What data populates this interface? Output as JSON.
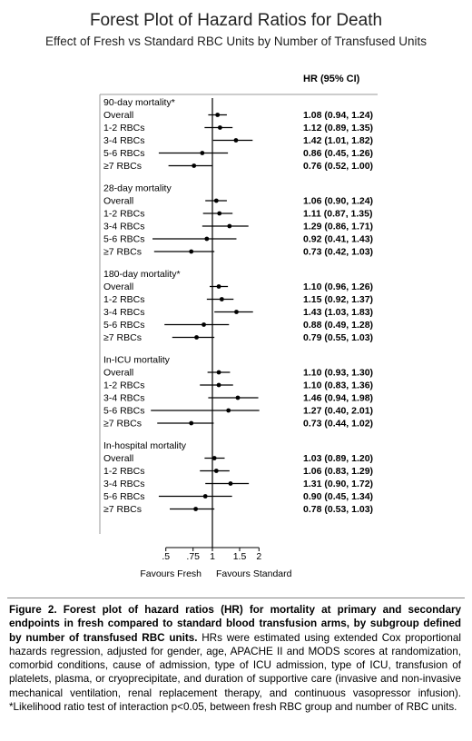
{
  "title": "Forest Plot of Hazard Ratios for Death",
  "subtitle": "Effect of Fresh vs Standard RBC Units by Number of Transfused Units",
  "chart_data": {
    "type": "forest",
    "column_header": "HR (95% CI)",
    "x_scale": "log",
    "x_ticks": [
      {
        "value": 0.5,
        "label": ".5"
      },
      {
        "value": 0.75,
        "label": ".75"
      },
      {
        "value": 1,
        "label": "1"
      },
      {
        "value": 1.5,
        "label": "1.5"
      },
      {
        "value": 2,
        "label": "2"
      }
    ],
    "reference_line": 1,
    "left_label": "Favours Fresh",
    "right_label": "Favours Standard",
    "groups": [
      {
        "title": "90-day mortality*",
        "rows": [
          {
            "label": "Overall",
            "hr": 1.08,
            "lo": 0.94,
            "hi": 1.24,
            "text": "1.08 (0.94, 1.24)"
          },
          {
            "label": "1-2 RBCs",
            "hr": 1.12,
            "lo": 0.89,
            "hi": 1.35,
            "text": "1.12 (0.89, 1.35)"
          },
          {
            "label": "3-4 RBCs",
            "hr": 1.42,
            "lo": 1.01,
            "hi": 1.82,
            "text": "1.42 (1.01, 1.82)"
          },
          {
            "label": "5-6 RBCs",
            "hr": 0.86,
            "lo": 0.45,
            "hi": 1.26,
            "text": "0.86 (0.45, 1.26)"
          },
          {
            "label": "≥7 RBCs",
            "hr": 0.76,
            "lo": 0.52,
            "hi": 1.0,
            "text": "0.76 (0.52, 1.00)"
          }
        ]
      },
      {
        "title": "28-day mortality",
        "rows": [
          {
            "label": "Overall",
            "hr": 1.06,
            "lo": 0.9,
            "hi": 1.24,
            "text": "1.06 (0.90, 1.24)"
          },
          {
            "label": "1-2 RBCs",
            "hr": 1.11,
            "lo": 0.87,
            "hi": 1.35,
            "text": "1.11 (0.87, 1.35)"
          },
          {
            "label": "3-4 RBCs",
            "hr": 1.29,
            "lo": 0.86,
            "hi": 1.71,
            "text": "1.29 (0.86, 1.71)"
          },
          {
            "label": "5-6 RBCs",
            "hr": 0.92,
            "lo": 0.41,
            "hi": 1.43,
            "text": "0.92 (0.41, 1.43)"
          },
          {
            "label": "≥7 RBCs",
            "hr": 0.73,
            "lo": 0.42,
            "hi": 1.03,
            "text": "0.73 (0.42, 1.03)"
          }
        ]
      },
      {
        "title": "180-day mortality*",
        "rows": [
          {
            "label": "Overall",
            "hr": 1.1,
            "lo": 0.96,
            "hi": 1.26,
            "text": "1.10 (0.96, 1.26)"
          },
          {
            "label": "1-2 RBCs",
            "hr": 1.15,
            "lo": 0.92,
            "hi": 1.37,
            "text": "1.15 (0.92, 1.37)"
          },
          {
            "label": "3-4 RBCs",
            "hr": 1.43,
            "lo": 1.03,
            "hi": 1.83,
            "text": "1.43 (1.03, 1.83)"
          },
          {
            "label": "5-6 RBCs",
            "hr": 0.88,
            "lo": 0.49,
            "hi": 1.28,
            "text": "0.88 (0.49, 1.28)"
          },
          {
            "label": "≥7 RBCs",
            "hr": 0.79,
            "lo": 0.55,
            "hi": 1.03,
            "text": "0.79 (0.55, 1.03)"
          }
        ]
      },
      {
        "title": "In-ICU mortality",
        "rows": [
          {
            "label": "Overall",
            "hr": 1.1,
            "lo": 0.93,
            "hi": 1.3,
            "text": "1.10 (0.93, 1.30)"
          },
          {
            "label": "1-2 RBCs",
            "hr": 1.1,
            "lo": 0.83,
            "hi": 1.36,
            "text": "1.10 (0.83, 1.36)"
          },
          {
            "label": "3-4 RBCs",
            "hr": 1.46,
            "lo": 0.94,
            "hi": 1.98,
            "text": "1.46 (0.94, 1.98)"
          },
          {
            "label": "5-6 RBCs",
            "hr": 1.27,
            "lo": 0.4,
            "hi": 2.01,
            "text": "1.27 (0.40, 2.01)"
          },
          {
            "label": "≥7 RBCs",
            "hr": 0.73,
            "lo": 0.44,
            "hi": 1.02,
            "text": "0.73 (0.44, 1.02)"
          }
        ]
      },
      {
        "title": "In-hospital mortality",
        "rows": [
          {
            "label": "Overall",
            "hr": 1.03,
            "lo": 0.89,
            "hi": 1.2,
            "text": "1.03 (0.89, 1.20)"
          },
          {
            "label": "1-2 RBCs",
            "hr": 1.06,
            "lo": 0.83,
            "hi": 1.29,
            "text": "1.06 (0.83, 1.29)"
          },
          {
            "label": "3-4 RBCs",
            "hr": 1.31,
            "lo": 0.9,
            "hi": 1.72,
            "text": "1.31 (0.90, 1.72)"
          },
          {
            "label": "5-6 RBCs",
            "hr": 0.9,
            "lo": 0.45,
            "hi": 1.34,
            "text": "0.90 (0.45, 1.34)"
          },
          {
            "label": "≥7 RBCs",
            "hr": 0.78,
            "lo": 0.53,
            "hi": 1.03,
            "text": "0.78 (0.53, 1.03)"
          }
        ]
      }
    ]
  },
  "caption": {
    "bold": "Figure 2. Forest plot of hazard ratios (HR) for mortality at primary and secondary endpoints in fresh compared to standard blood transfusion arms, by subgroup defined by number of transfused RBC units.",
    "text": " HRs were estimated using extended Cox proportional hazards regression, adjusted for gender, age, APACHE II and MODS scores at randomization, comorbid conditions, cause of admission, type of ICU admission, type of ICU, transfusion of platelets, plasma, or cryoprecipitate, and duration of supportive care (invasive and non-invasive mechanical ventilation, renal replacement therapy, and continuous vasopressor infusion). *Likelihood ratio test of interaction p<0.05, between fresh RBC group and number of RBC units."
  },
  "colors": {
    "frame": "#9a9a9a",
    "ink": "#000000",
    "title": "#222222"
  }
}
